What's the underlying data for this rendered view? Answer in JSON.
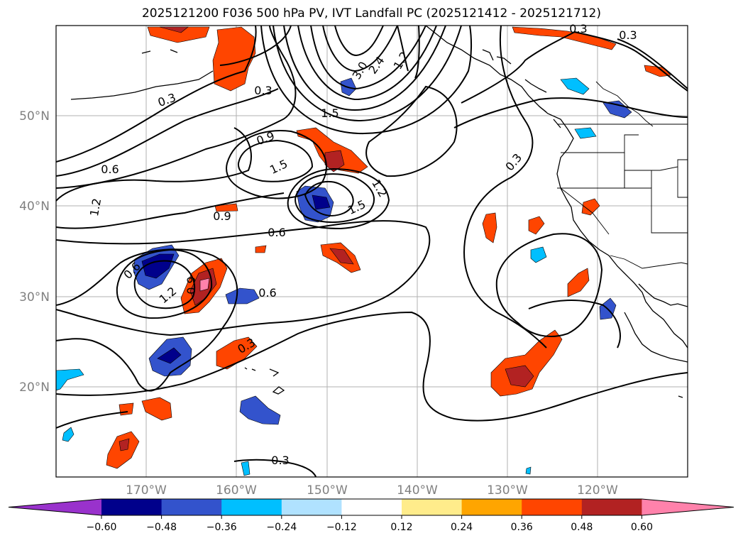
{
  "title": "2025121200 F036 500 hPa PV, IVT Landfall PC (2025121412 - 2025121712)",
  "lat_labels": [
    "50°N",
    "40°N",
    "30°N",
    "20°N"
  ],
  "lon_labels": [
    "170°W",
    "160°W",
    "150°W",
    "140°W",
    "130°W",
    "120°W"
  ],
  "pv_contour_labels": [
    "0.3",
    "0.3",
    "0.3",
    "0.3",
    "0.3",
    "0.3",
    "0.3",
    "0.6",
    "0.6",
    "0.6",
    "0.6",
    "0.9",
    "0.9",
    "0.9",
    "1.2",
    "1.2",
    "1.2",
    "1.2",
    "1.5",
    "1.5",
    "1.5",
    "2.4",
    "3.0"
  ],
  "colorbar": {
    "tick_labels": [
      "−0.60",
      "−0.48",
      "−0.36",
      "−0.24",
      "−0.12",
      "0.12",
      "0.24",
      "0.36",
      "0.48",
      "0.60"
    ],
    "colors": [
      "#9932cc",
      "#00008b",
      "#3353cc",
      "#00bfff",
      "#b0e2ff",
      "#ffffff",
      "#ffec8b",
      "#ffa500",
      "#ff4500",
      "#b22222",
      "#ff82ab"
    ]
  }
}
